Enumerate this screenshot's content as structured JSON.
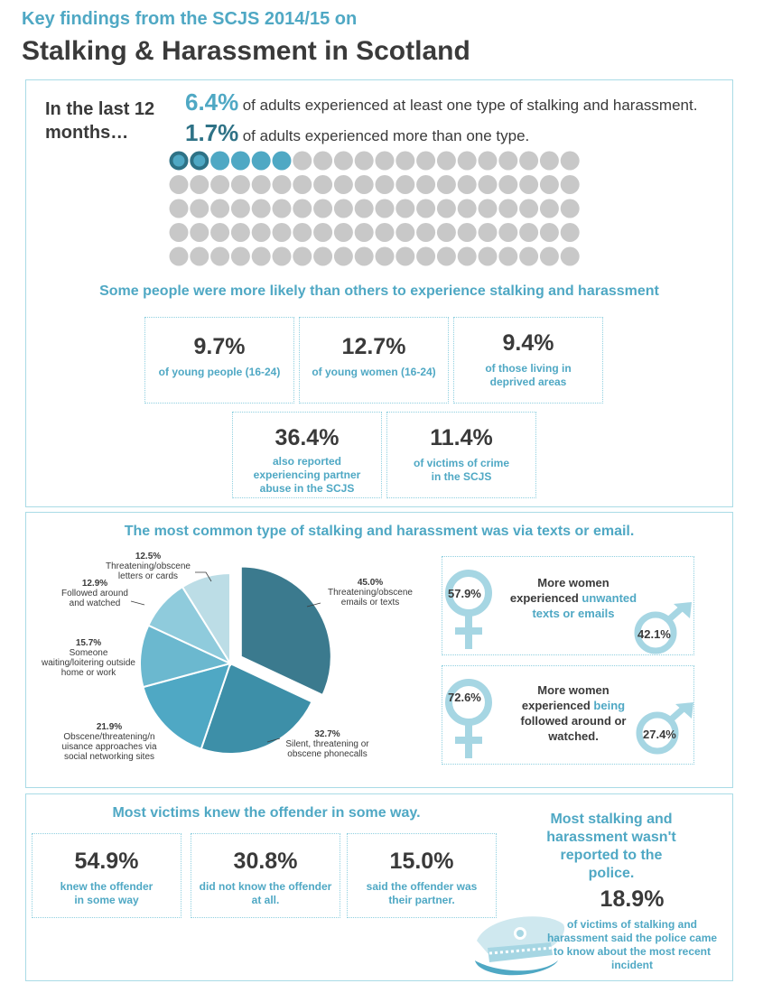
{
  "header": {
    "kicker": "Key findings from the SCJS 2014/15 on",
    "title": "Stalking & Harassment in Scotland"
  },
  "prevalence": {
    "intro": "In the last 12 months…",
    "stat1_value": "6.4%",
    "stat1_text": "of adults experienced  at least one type of stalking and harassment.",
    "stat2_value": "1.7%",
    "stat2_text": "of adults experienced more than one type.",
    "waffle": {
      "total": 100,
      "one_type_pct": 6.4,
      "more_than_one_pct": 1.7
    }
  },
  "groups": {
    "heading": "Some people were more likely than others to experience stalking and harassment",
    "cards": [
      {
        "value": "9.7%",
        "label": "of young people (16-24)"
      },
      {
        "value": "12.7%",
        "label": "of young women (16-24)"
      },
      {
        "value": "9.4%",
        "label": "of those living in deprived areas"
      },
      {
        "value": "36.4%",
        "label": "also reported experiencing  partner abuse in the SCJS"
      },
      {
        "value": "11.4%",
        "label": "of victims of crime in the SCJS"
      }
    ]
  },
  "types": {
    "heading": "The most common type of stalking and harassment was via texts or email.",
    "labels": [
      {
        "pct": "45.0%",
        "text": "Threatening/obscene emails or texts"
      },
      {
        "pct": "32.7%",
        "text": "Silent, threatening  or obscene phonecalls"
      },
      {
        "pct": "21.9%",
        "text": "Obscene/threatening/n uisance approaches via social networking sites"
      },
      {
        "pct": "15.7%",
        "text": "Someone waiting/loitering outside home or work"
      },
      {
        "pct": "12.9%",
        "text": "Followed around and watched"
      },
      {
        "pct": "12.5%",
        "text": "Threatening/obscene letters or cards"
      }
    ]
  },
  "chart_data": {
    "type": "pie",
    "title": "The most common type of stalking and harassment was via texts or email.",
    "categories": [
      "Threatening/obscene emails or texts",
      "Silent, threatening  or obscene phonecalls",
      "Obscene/threatening/n uisance approaches via social networking sites",
      "Someone waiting/loitering outside home or work",
      "Followed around and watched",
      "Threatening/obscene letters or cards"
    ],
    "values": [
      45.0,
      32.7,
      21.9,
      15.7,
      12.9,
      12.5
    ],
    "colors": [
      "#3b7a8e",
      "#3d8fa8",
      "#4fa8c4",
      "#6bb8cf",
      "#8fcbdc",
      "#bcdde6"
    ],
    "exploded": "Threatening/obscene emails or texts"
  },
  "gender": {
    "panels": [
      {
        "women_pct": "57.9%",
        "men_pct": "42.1%",
        "text_a": "More  women",
        "text_b": "experienced ",
        "text_hl": "unwanted texts or emails",
        "women_value": 57.9,
        "men_value": 42.1
      },
      {
        "women_pct": "72.6%",
        "men_pct": "27.4%",
        "text_a": "More women",
        "text_b": "experienced ",
        "text_hl": "being",
        "text_hl2": "followed around or",
        "text_hl3": "watched.",
        "women_value": 72.6,
        "men_value": 27.4
      }
    ],
    "colors": {
      "symbol": "#a6d6e3"
    }
  },
  "offender": {
    "heading": "Most victims knew the offender in some way.",
    "cards": [
      {
        "value": "54.9%",
        "label": "knew the offender in some way"
      },
      {
        "value": "30.8%",
        "label": "did not know the offender at all."
      },
      {
        "value": "15.0%",
        "label": "said the offender was their partner."
      }
    ]
  },
  "police": {
    "heading": "Most stalking and harassment wasn't reported to the police.",
    "value": "18.9%",
    "label": "of victims of stalking and harassment said the police came to know about the most recent incident"
  },
  "colors": {
    "accent": "#4fa8c4",
    "dark": "#3a3a3a",
    "border": "#a9dbe6",
    "grey_dot": "#c8c8c8",
    "dot_dark": "#2e7286"
  }
}
